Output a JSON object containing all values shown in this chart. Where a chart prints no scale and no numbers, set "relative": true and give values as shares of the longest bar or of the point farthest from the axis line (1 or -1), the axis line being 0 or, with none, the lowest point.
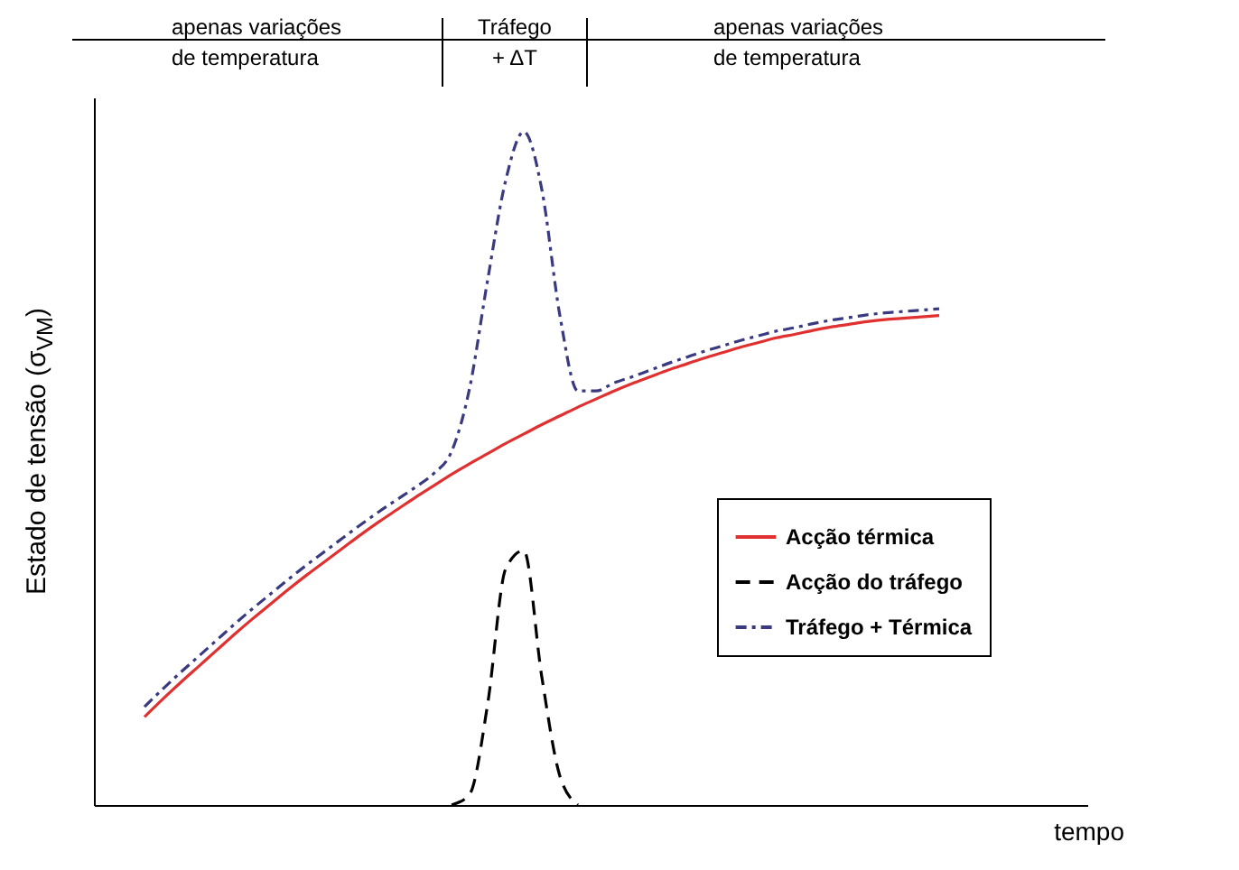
{
  "chart_data": {
    "type": "line",
    "relative": true,
    "xlabel": "tempo",
    "ylabel": "Estado de tensão (σ$_{VM}$)",
    "annotations": [
      "apenas variações de temperatura",
      "Tráfego + ΔT",
      "apenas variações de temperatura"
    ],
    "categories": [
      null,
      null,
      null,
      null,
      null,
      null,
      null,
      null,
      null,
      null,
      null,
      null,
      null,
      null,
      null,
      null,
      null,
      null,
      null,
      null,
      null,
      null,
      null,
      null,
      null,
      null,
      null,
      null,
      null,
      null,
      null,
      null,
      null,
      null,
      null,
      null,
      null,
      null,
      null,
      null,
      null,
      null,
      null,
      null,
      null
    ],
    "legend": "bottom right",
    "grid": false,
    "series": [
      {
        "name": "Acção térmica",
        "color": "#e03030",
        "line_style": "solid",
        "values": [
          0.131,
          0.157,
          0.182,
          0.206,
          0.23,
          0.254,
          0.277,
          0.299,
          0.321,
          0.342,
          0.362,
          0.382,
          0.402,
          0.421,
          0.439,
          0.457,
          0.474,
          0.491,
          0.507,
          0.522,
          0.537,
          0.551,
          0.565,
          0.578,
          0.591,
          0.603,
          0.615,
          0.626,
          0.636,
          0.646,
          0.655,
          0.664,
          0.672,
          0.68,
          0.687,
          0.694,
          0.699,
          0.705,
          0.71,
          0.714,
          0.718,
          0.721,
          0.723,
          0.725,
          0.727
        ]
      },
      {
        "name": "Acção do tráfego",
        "color": "#000000",
        "line_style": "dashed",
        "values": [
          null,
          null,
          null,
          null,
          null,
          null,
          null,
          null,
          null,
          null,
          null,
          null,
          null,
          null,
          null,
          null,
          null,
          0,
          0.016,
          0.15,
          0.351,
          0.378,
          0.19,
          0.043,
          0,
          null,
          null,
          null,
          null,
          null,
          null,
          null,
          null,
          null,
          null,
          null,
          null,
          null,
          null,
          null,
          null,
          null,
          null,
          null,
          null
        ]
      },
      {
        "name": "Tráfego + Térmica",
        "color": "#3a3a80",
        "line_style": "dashdot",
        "values": [
          0.146,
          0.172,
          0.197,
          0.221,
          0.245,
          0.269,
          0.292,
          0.314,
          0.336,
          0.357,
          0.377,
          0.397,
          0.417,
          0.436,
          0.454,
          0.472,
          0.492,
          0.525,
          0.619,
          0.78,
          0.928,
          1,
          0.914,
          0.727,
          0.615,
          0.615,
          0.627,
          0.636,
          0.646,
          0.656,
          0.665,
          0.674,
          0.682,
          0.69,
          0.697,
          0.704,
          0.709,
          0.715,
          0.72,
          0.724,
          0.728,
          0.731,
          0.733,
          0.735,
          0.737
        ]
      }
    ]
  }
}
